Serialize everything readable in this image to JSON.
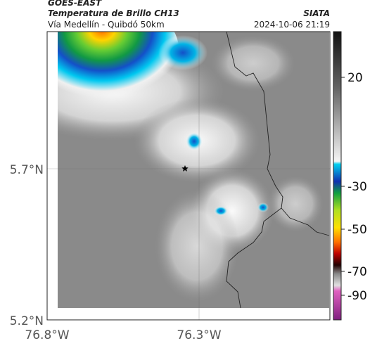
{
  "header": {
    "source": "GOES-EAST",
    "title": "Temperatura de Brillo CH13",
    "subtitle": "Vía Medellín - Quibdó 50km",
    "brand": "SIATA",
    "timestamp": "2024-10-06 21:19"
  },
  "map": {
    "lat_labels": [
      "5.7°N",
      "5.2°N"
    ],
    "lon_labels": [
      "76.8°W",
      "76.3°W"
    ]
  },
  "colorbar": {
    "labels": [
      "20",
      "-30",
      "-50",
      "-70",
      "-90"
    ]
  }
}
